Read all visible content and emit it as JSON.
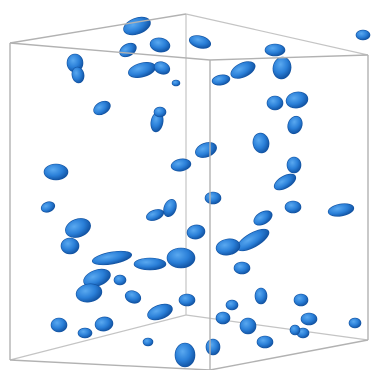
{
  "figure": {
    "kind": "3d-isosurface-rendering",
    "bounding_box": "wireframe-cuboid",
    "blob_count_visible": 64
  },
  "colors": {
    "background": "#ffffff",
    "box_edge": "#b7b7b7",
    "blob_fill": "#2a7fd8",
    "blob_shadow": "#0f4f9e",
    "blob_highlight": "#5aa9f0"
  }
}
